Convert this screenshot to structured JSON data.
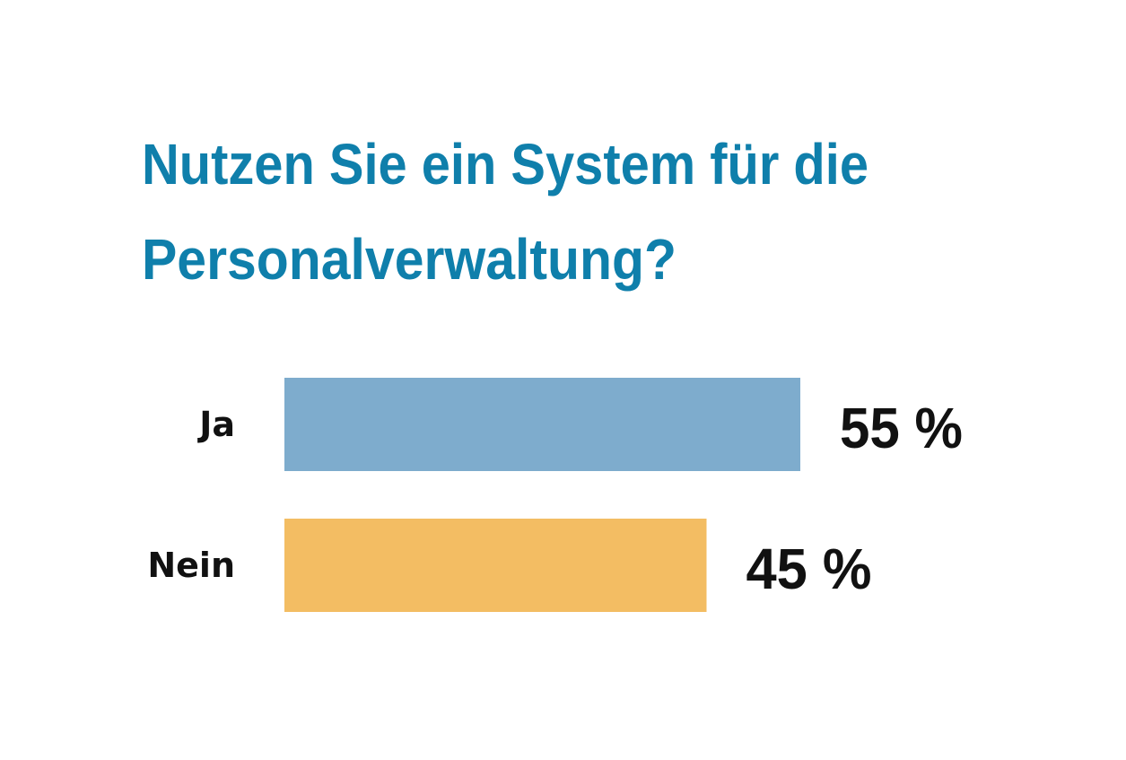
{
  "chart_data": {
    "type": "bar",
    "orientation": "horizontal",
    "title_lines": [
      "Nutzen Sie ein System für die",
      "Personalverwaltung?"
    ],
    "categories": [
      "Ja",
      "Nein"
    ],
    "values": [
      55,
      45
    ],
    "value_labels": [
      "55 %",
      "45 %"
    ],
    "colors": [
      "#7eaccd",
      "#f3bd63"
    ],
    "title_color": "#0f7fab",
    "xlim": [
      0,
      100
    ],
    "unit": "%",
    "grid": false,
    "axes_visible": false
  }
}
